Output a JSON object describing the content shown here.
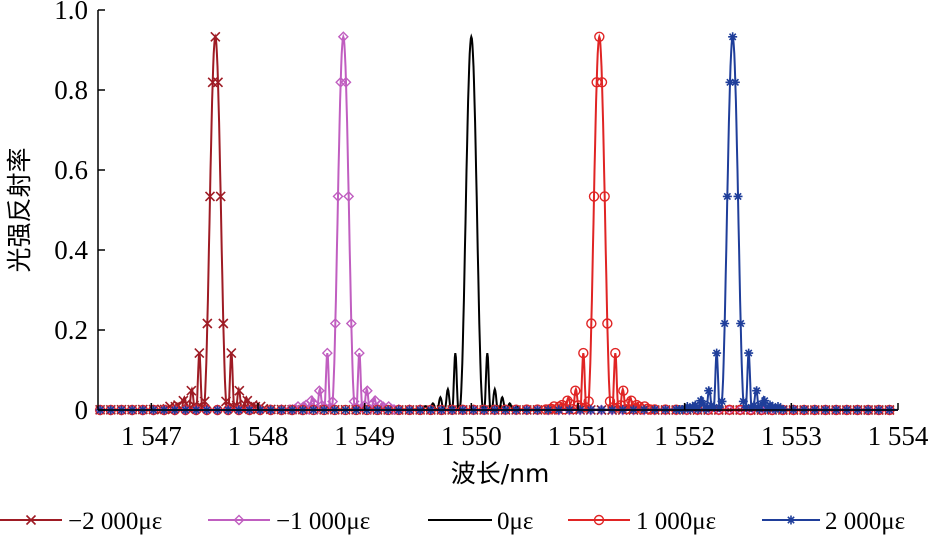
{
  "chart_data": {
    "type": "line",
    "xlabel": "波长/nm",
    "ylabel": "光强反射率",
    "xlim": [
      1546.5,
      1554
    ],
    "ylim": [
      0,
      1.0
    ],
    "x_ticks": [
      1547,
      1548,
      1549,
      1550,
      1551,
      1552,
      1553,
      1554
    ],
    "x_tick_labels": [
      "1 547",
      "1 548",
      "1 549",
      "1 550",
      "1 551",
      "1 552",
      "1 553",
      "1 554"
    ],
    "y_ticks": [
      0,
      0.2,
      0.4,
      0.6,
      0.8,
      1.0
    ],
    "y_tick_labels": [
      "0",
      "0.2",
      "0.4",
      "0.6",
      "0.8",
      "1.0"
    ],
    "grid": false,
    "legend_position": "bottom",
    "series": [
      {
        "name": "−2 000με",
        "center": 1547.6,
        "peak": 0.93,
        "color": "#9e1b24",
        "marker": "x"
      },
      {
        "name": "−1 000με",
        "center": 1548.8,
        "peak": 0.93,
        "color": "#c05ec0",
        "marker": "diamond"
      },
      {
        "name": "0με",
        "center": 1550.0,
        "peak": 0.93,
        "color": "#000000",
        "marker": "none"
      },
      {
        "name": "1 000με",
        "center": 1551.2,
        "peak": 0.93,
        "color": "#e02424",
        "marker": "circle"
      },
      {
        "name": "2 000με",
        "center": 1552.45,
        "peak": 0.93,
        "color": "#1f3e9a",
        "marker": "star"
      }
    ],
    "spectrum_shape": {
      "main_lobe_half_width": 0.11,
      "side_lobes": [
        {
          "offset": 0.15,
          "value": 0.14
        },
        {
          "offset": 0.22,
          "value": 0.05
        },
        {
          "offset": 0.29,
          "value": 0.03
        },
        {
          "offset": 0.36,
          "value": 0.015
        },
        {
          "offset": 0.43,
          "value": 0.008
        }
      ]
    }
  }
}
